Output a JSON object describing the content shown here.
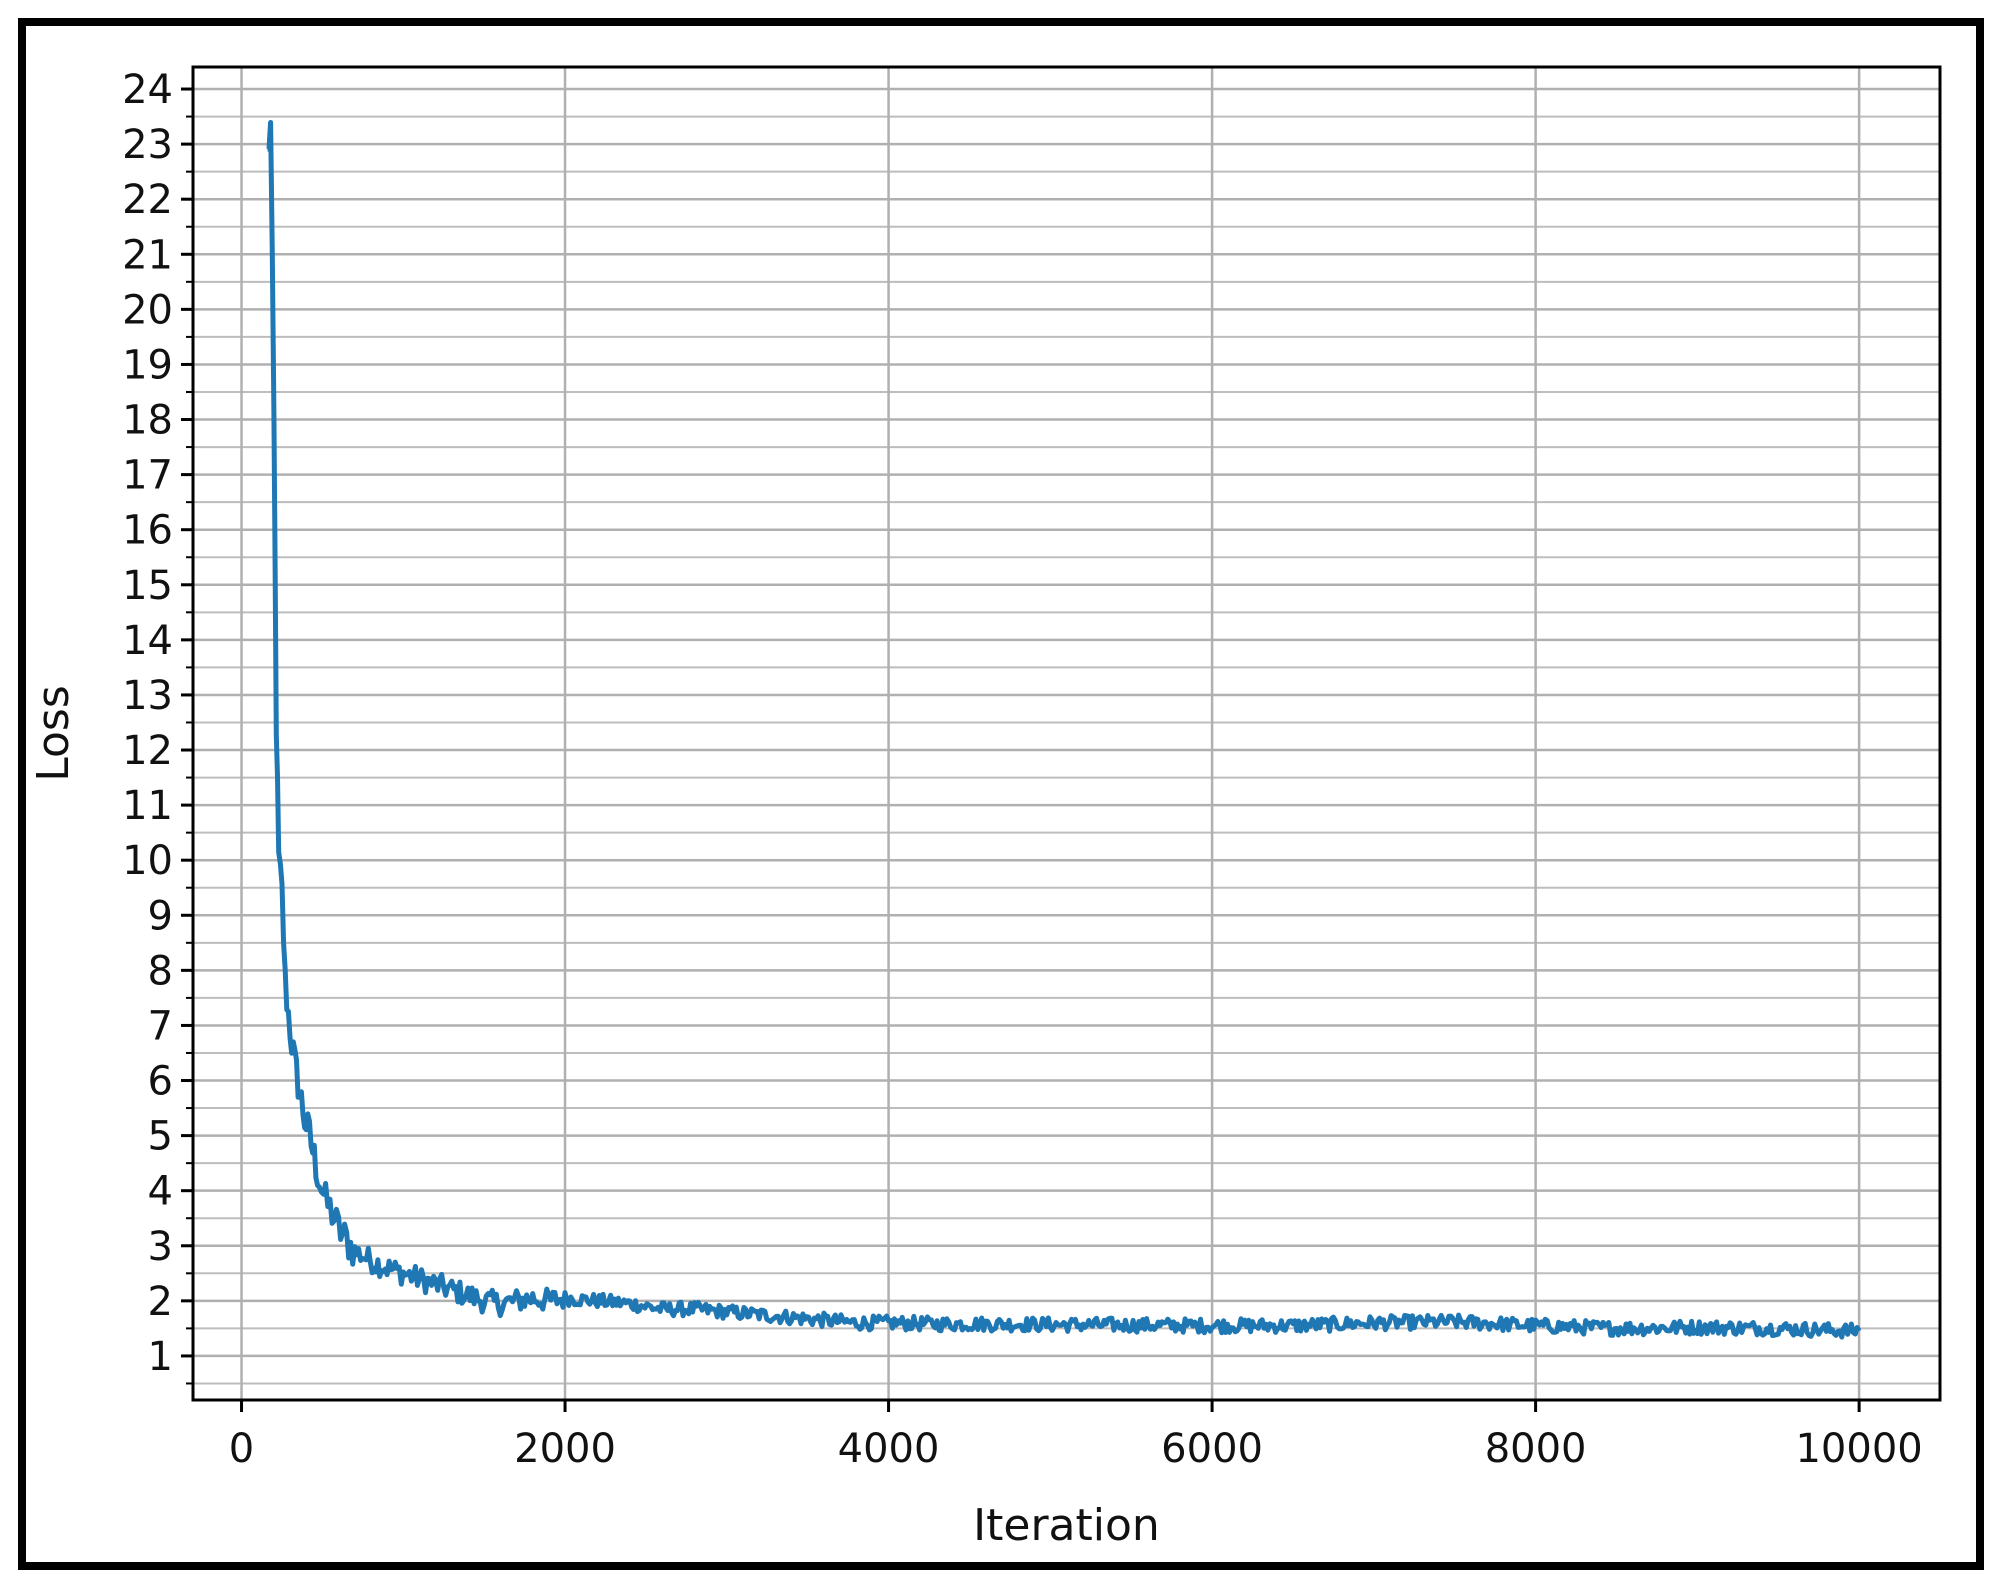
{
  "chart_data": {
    "type": "line",
    "title": "",
    "xlabel": "Iteration",
    "ylabel": "Loss",
    "xlim": [
      -300,
      10500
    ],
    "ylim": [
      0.2,
      24.4
    ],
    "xticks": [
      0,
      2000,
      4000,
      6000,
      8000,
      10000
    ],
    "xtick_labels": [
      "0",
      "2000",
      "4000",
      "6000",
      "8000",
      "10000"
    ],
    "yticks": [
      1,
      2,
      3,
      4,
      5,
      6,
      7,
      8,
      9,
      10,
      11,
      12,
      13,
      14,
      15,
      16,
      17,
      18,
      19,
      20,
      21,
      22,
      23,
      24
    ],
    "ytick_labels": [
      "1",
      "2",
      "3",
      "4",
      "5",
      "6",
      "7",
      "8",
      "9",
      "10",
      "11",
      "12",
      "13",
      "14",
      "15",
      "16",
      "17",
      "18",
      "19",
      "20",
      "21",
      "22",
      "23",
      "24"
    ],
    "grid": true,
    "minor_grid_y": true,
    "legend": "none",
    "series_color": "#1f77b4",
    "series": [
      {
        "x": [
          160,
          180,
          200,
          215,
          230,
          250,
          270,
          290,
          310,
          330,
          360,
          390,
          420,
          450,
          480,
          520,
          560,
          600,
          650,
          700,
          760,
          820,
          900,
          1000,
          1100,
          1200,
          1300,
          1400,
          1500,
          1600,
          1700,
          1800,
          1900,
          2000,
          2200,
          2400,
          2600,
          2800,
          3000,
          3200,
          3400,
          3600,
          3800,
          4000,
          4300,
          4600,
          5000,
          5500,
          6000,
          6500,
          7000,
          7500,
          8000,
          8500,
          9000,
          9500,
          10000
        ],
        "y": [
          22.8,
          23.3,
          18.0,
          12.5,
          10.0,
          9.4,
          7.8,
          7.2,
          6.7,
          6.3,
          5.8,
          5.3,
          5.0,
          4.6,
          4.2,
          3.8,
          3.6,
          3.3,
          3.1,
          2.9,
          2.8,
          2.7,
          2.6,
          2.5,
          2.4,
          2.3,
          2.2,
          2.1,
          2.0,
          1.95,
          2.0,
          2.05,
          2.0,
          2.05,
          2.0,
          1.95,
          1.85,
          1.85,
          1.8,
          1.75,
          1.7,
          1.65,
          1.6,
          1.6,
          1.58,
          1.58,
          1.57,
          1.56,
          1.55,
          1.55,
          1.6,
          1.62,
          1.55,
          1.5,
          1.52,
          1.5,
          1.45
        ]
      }
    ]
  }
}
